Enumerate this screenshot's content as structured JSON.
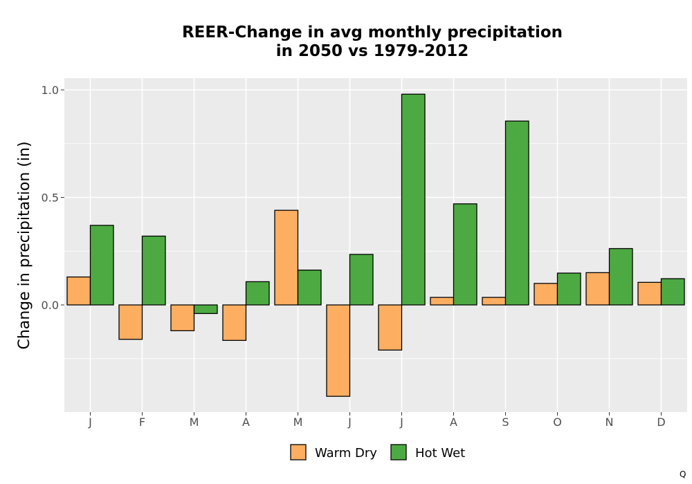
{
  "chart_data": {
    "type": "bar",
    "title_lines": [
      "REER-Change in avg monthly precipitation",
      "in 2050 vs 1979-2012"
    ],
    "xlabel": "",
    "ylabel": "Change in precipitation (in)",
    "categories": [
      "J",
      "F",
      "M",
      "A",
      "M",
      "J",
      "J",
      "A",
      "S",
      "O",
      "N",
      "D"
    ],
    "series": [
      {
        "name": "Warm Dry",
        "color": "#fdae61",
        "values": [
          0.13,
          -0.16,
          -0.12,
          -0.165,
          0.44,
          -0.425,
          -0.21,
          0.035,
          0.035,
          0.1,
          0.15,
          0.105
        ]
      },
      {
        "name": "Hot Wet",
        "color": "#4daa42",
        "values": [
          0.37,
          0.32,
          -0.04,
          0.108,
          0.162,
          0.235,
          0.98,
          0.47,
          0.855,
          0.148,
          0.262,
          0.122
        ]
      }
    ],
    "ylim": [
      -0.5,
      1.05
    ],
    "yticks": [
      0.0,
      0.5,
      1.0
    ],
    "ytick_labels": [
      "0.0",
      "0.5",
      "1.0"
    ],
    "grid": true,
    "legend_position": "bottom",
    "panel_color": "#ebebeb",
    "grid_color": "#ffffff"
  },
  "corner_mark": "Q"
}
